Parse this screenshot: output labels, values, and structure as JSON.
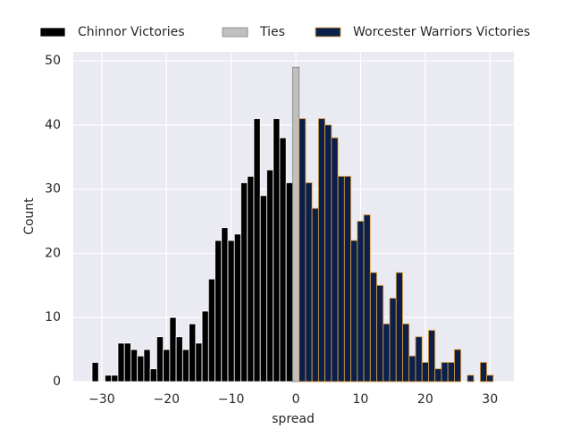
{
  "chart_data": {
    "type": "histogram",
    "xlabel": "spread",
    "ylabel": "Count",
    "xlim": [
      -34.4,
      33.7
    ],
    "ylim": [
      0,
      51.4
    ],
    "xticks": [
      {
        "value": -30,
        "label": "−30"
      },
      {
        "value": -20,
        "label": "−20"
      },
      {
        "value": -10,
        "label": "−10"
      },
      0,
      10,
      20,
      30
    ],
    "yticks": [
      0,
      10,
      20,
      30,
      40,
      50
    ],
    "grid": true,
    "legend": "top",
    "series": [
      {
        "name": "Chinnor Victories",
        "color": "#000000",
        "edgecolor": "#ffffff",
        "bins": [
          -31.5,
          -30.5,
          -29.5,
          -28.5,
          -27.5,
          -26.5,
          -25.5,
          -24.5,
          -23.5,
          -22.5,
          -21.5,
          -20.5,
          -19.5,
          -18.5,
          -17.5,
          -16.5,
          -15.5,
          -14.5,
          -13.5,
          -12.5,
          -11.5,
          -10.5,
          -9.5,
          -8.5,
          -7.5,
          -6.5,
          -5.5,
          -4.5,
          -3.5,
          -2.5,
          -1.5,
          -0.5
        ],
        "values": [
          3,
          0,
          1,
          1,
          6,
          6,
          5,
          4,
          5,
          2,
          7,
          5,
          10,
          7,
          5,
          9,
          6,
          11,
          16,
          22,
          24,
          22,
          23,
          31,
          32,
          41,
          29,
          33,
          41,
          38,
          31
        ]
      },
      {
        "name": "Ties",
        "color": "#c0c0c0",
        "edgecolor": "#808080",
        "bins": [
          -0.5,
          0.5
        ],
        "values": [
          49
        ]
      },
      {
        "name": "Worcester Warriors Victories",
        "color": "#0b1f4b",
        "edgecolor": "#e8a33a",
        "bins": [
          0.5,
          1.5,
          2.5,
          3.5,
          4.5,
          5.5,
          6.5,
          7.5,
          8.5,
          9.5,
          10.5,
          11.5,
          12.5,
          13.5,
          14.5,
          15.5,
          16.5,
          17.5,
          18.5,
          19.5,
          20.5,
          21.5,
          22.5,
          23.5,
          24.5,
          25.5,
          26.5,
          27.5,
          28.5,
          29.5,
          30.5
        ],
        "values": [
          41,
          31,
          27,
          41,
          40,
          38,
          32,
          32,
          22,
          25,
          26,
          17,
          15,
          9,
          13,
          17,
          9,
          4,
          7,
          3,
          8,
          2,
          3,
          3,
          5,
          0,
          1,
          0,
          3,
          1
        ]
      }
    ]
  }
}
